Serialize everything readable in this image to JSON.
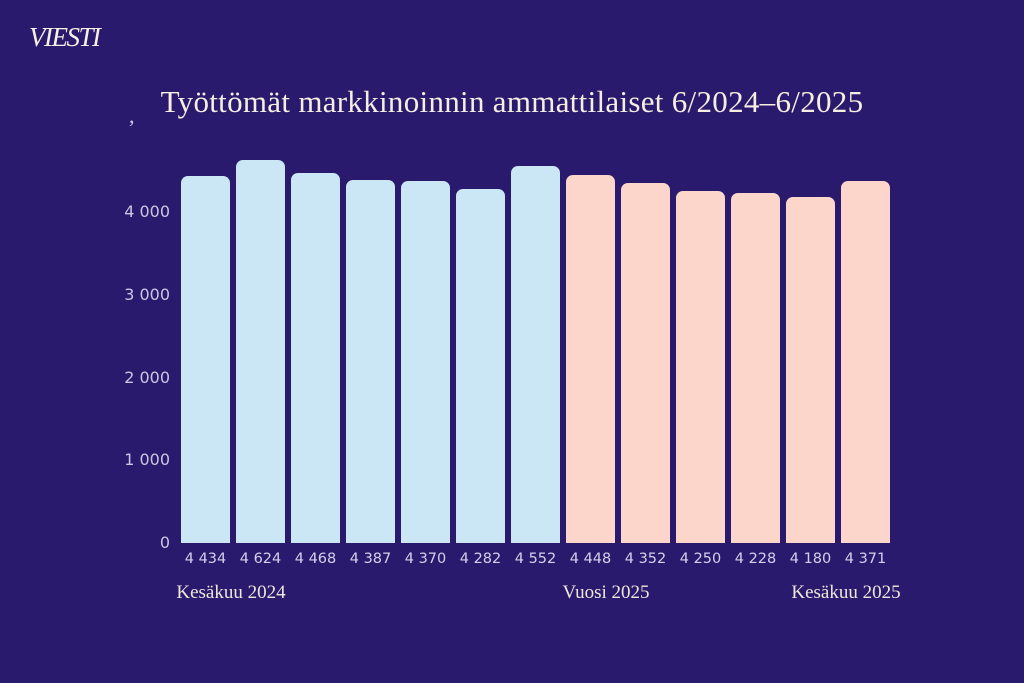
{
  "brand": {
    "logo_text": "VIESTI"
  },
  "decoration": {
    "comma_mark": ","
  },
  "chart_data": {
    "type": "bar",
    "title": "Työttömät markkinoinnin ammattilaiset 6/2024–6/2025",
    "xlabel": "",
    "ylabel": "",
    "ylim": [
      0,
      4750
    ],
    "grid": false,
    "legend_position": "none",
    "background_color": "#2a1a6e",
    "colors": {
      "year_2024": "#cbe6f4",
      "year_2025": "#fcd6ca"
    },
    "y_ticks": [
      {
        "value": 4000,
        "label": "4 000"
      },
      {
        "value": 3000,
        "label": "3 000"
      },
      {
        "value": 2000,
        "label": "2 000"
      },
      {
        "value": 1000,
        "label": "1 000"
      },
      {
        "value": 0,
        "label": "0"
      }
    ],
    "points": [
      {
        "value": 4434,
        "label": "4 434",
        "group": "year_2024"
      },
      {
        "value": 4624,
        "label": "4 624",
        "group": "year_2024"
      },
      {
        "value": 4468,
        "label": "4 468",
        "group": "year_2024"
      },
      {
        "value": 4387,
        "label": "4 387",
        "group": "year_2024"
      },
      {
        "value": 4370,
        "label": "4 370",
        "group": "year_2024"
      },
      {
        "value": 4282,
        "label": "4 282",
        "group": "year_2024"
      },
      {
        "value": 4552,
        "label": "4 552",
        "group": "year_2024"
      },
      {
        "value": 4448,
        "label": "4 448",
        "group": "year_2025"
      },
      {
        "value": 4352,
        "label": "4 352",
        "group": "year_2025"
      },
      {
        "value": 4250,
        "label": "4 250",
        "group": "year_2025"
      },
      {
        "value": 4228,
        "label": "4 228",
        "group": "year_2025"
      },
      {
        "value": 4180,
        "label": "4 180",
        "group": "year_2025"
      },
      {
        "value": 4371,
        "label": "4 371",
        "group": "year_2025"
      }
    ],
    "x_axis_labels": [
      {
        "text": "Kesäkuu 2024",
        "position": "left"
      },
      {
        "text": "Vuosi 2025",
        "position": "center"
      },
      {
        "text": "Kesäkuu 2025",
        "position": "right"
      }
    ]
  }
}
